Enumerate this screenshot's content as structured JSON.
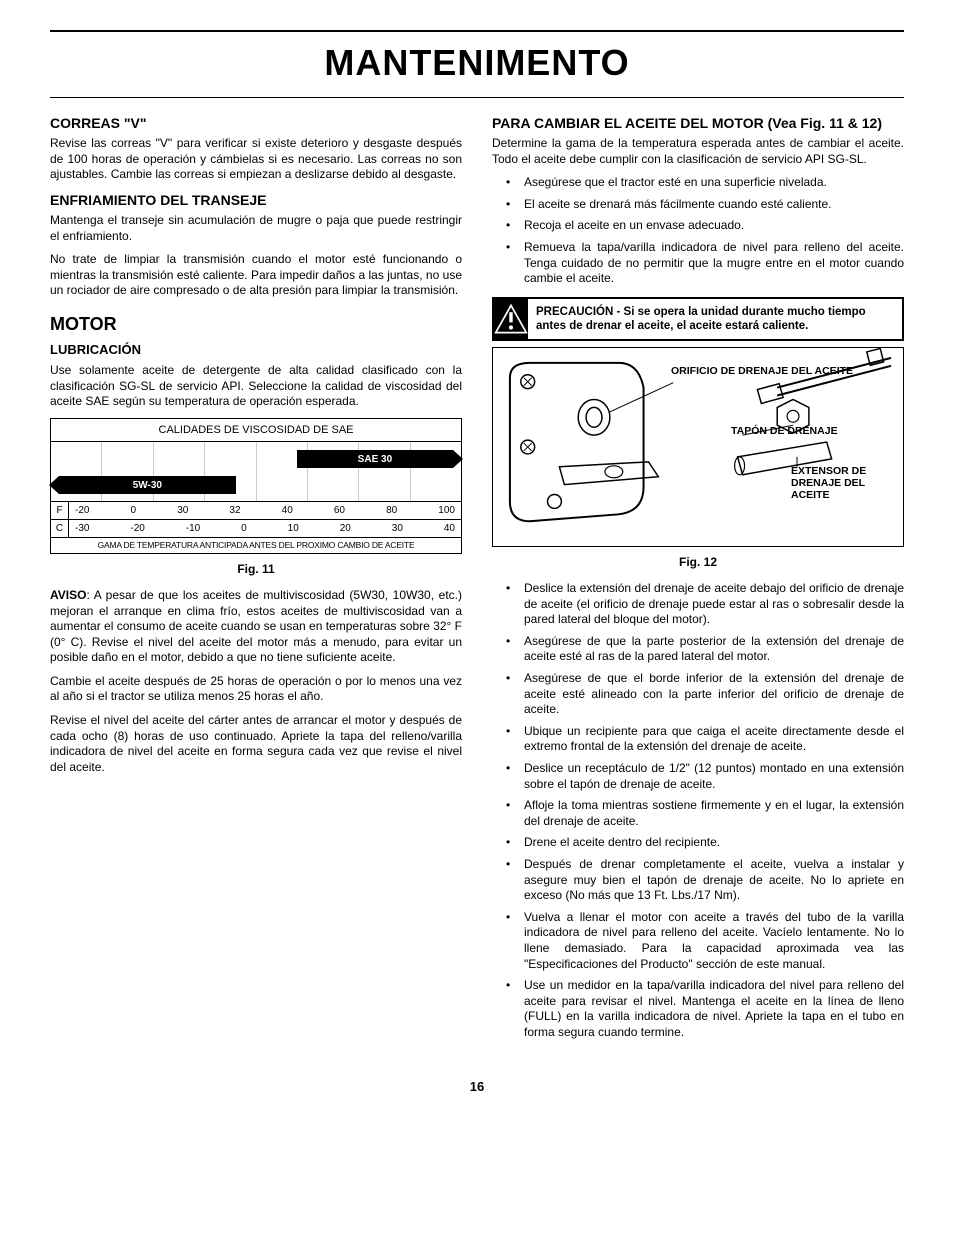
{
  "page_title": "MANTENIMENTO",
  "page_number": "16",
  "left": {
    "correas": {
      "heading": "CORREAS \"V\"",
      "p1": "Revise las correas \"V\" para verificar si existe deterioro y desgaste después de 100 horas de operación y cámbielas si es necesario. Las correas no son ajustables. Cambie las correas si empiezan a deslizarse debido al desgaste."
    },
    "enfriamiento": {
      "heading": "ENFRIAMIENTO DEL TRANSEJE",
      "p1": "Mantenga el transeje sin acumulación de mugre o paja que puede restringir el enfriamiento.",
      "p2": "No trate de limpiar la transmisión cuando el motor esté funcionando o mientras la transmisión esté caliente. Para impedir daños a las juntas, no use un rociador de aire compresado o de alta presión para limpiar la transmisión."
    },
    "motor_heading": "MOTOR",
    "lubricacion": {
      "heading": "LUBRICACIÓN",
      "p1": "Use solamente aceite de detergente de alta calidad clasificado con la clasificación SG-SL de servicio API. Seleccione la calidad de viscosidad del aceite SAE según su temperatura de operación esperada."
    },
    "sae_chart": {
      "title": "CALIDADES DE VISCOSIDAD DE SAE",
      "bar_sae30": "SAE 30",
      "bar_5w30": "5W-30",
      "f_label": "F",
      "c_label": "C",
      "f_ticks": [
        "-20",
        "0",
        "30",
        "32",
        "40",
        "60",
        "80",
        "100"
      ],
      "c_ticks": [
        "-30",
        "-20",
        "-10",
        "0",
        "10",
        "20",
        "30",
        "40"
      ],
      "footer": "GAMA DE TEMPERATURA ANTICIPADA ANTES DEL PROXIMO CAMBIO DE ACEITE"
    },
    "fig11_caption": "Fig. 11",
    "aviso_label": "AVISO",
    "aviso_text": ": A pesar de que los aceites de multiviscosidad (5W30, 10W30, etc.) mejoran el arranque en clima frío, estos aceites de multiviscosidad van a aumentar el consumo de aceite cuando se usan en temperaturas sobre 32° F (0° C). Revise el nivel del aceite del motor más a menudo, para evitar un posible daño en el motor, debido a que no tiene suficiente aceite.",
    "p_cambie": "Cambie el aceite después de 25 horas de operación o por lo menos una vez al año si el tractor se utiliza menos 25 horas el año.",
    "p_revise": "Revise el nivel del aceite del cárter antes de arrancar el motor y después de cada ocho (8) horas de uso continuado. Apriete la tapa del relleno/varilla indicadora de nivel del aceite en forma segura cada vez que revise el nivel del aceite."
  },
  "right": {
    "cambiar": {
      "heading": "PARA CAMBIAR EL ACEITE DEL MOTOR (Vea Fig. 11 & 12)",
      "p1": "Determine la gama de la temperatura esperada antes de cambiar el aceite. Todo el aceite debe cumplir con la clasificación de servicio API  SG-SL.",
      "bullets1": [
        "Asegúrese que el tractor esté en una superficie nivelada.",
        "El aceite se drenará más fácilmente cuando esté caliente.",
        "Recoja el aceite en un envase adecuado.",
        "Remueva la tapa/varilla indicadora de nivel para relleno del aceite. Tenga cuidado de no permitir que la mugre entre en el motor cuando cambie el aceite."
      ]
    },
    "caution_text": "PRECAUCIÓN - Si se opera la unidad durante mucho tiempo antes de drenar el aceite, el aceite estará caliente.",
    "fig12_labels": {
      "orificio": "ORIFICIO DE DRENAJE DEL ACEITE",
      "tapon": "TAPÓN DE DRENAJE",
      "extensor": "EXTENSOR DE DRENAJE DEL ACEITE"
    },
    "fig12_caption": "Fig. 12",
    "bullets2": [
      "Deslice la extensión del drenaje de aceite debajo del orificio de drenaje de aceite (el orificio de drenaje puede estar al ras o sobresalir desde la pared lateral del bloque del motor).",
      "Asegúrese de que la parte posterior de la extensión del drenaje de aceite esté al ras de la pared lateral del motor.",
      "Asegúrese de que el borde inferior de la extensión del drenaje de aceite esté alineado con la parte inferior del orificio de drenaje de aceite.",
      "Ubique un recipiente para que caiga el aceite directamente desde el extremo frontal de la extensión del drenaje de aceite.",
      "Deslice un receptáculo de 1/2\" (12 puntos) montado en una extensión sobre el tapón de drenaje de aceite.",
      "Afloje la toma mientras sostiene firmemente y en el lugar, la extensión del drenaje de aceite.",
      "Drene el aceite dentro del recipiente.",
      "Después de drenar completamente el aceite, vuelva a instalar y asegure muy bien el tapón de drenaje de aceite.  No lo apriete en exceso (No más que 13 Ft. Lbs./17 Nm).",
      "Vuelva a llenar el motor con aceite a través del tubo de la varilla indicadora de nivel para relleno del aceite. Vacíelo lentamente. No lo llene demasiado. Para la capacidad aproximada vea las \"Especificaciones del Producto\" sección de este manual.",
      "Use un medidor en la tapa/varilla indicadora del nivel para relleno del aceite para revisar el nivel. Mantenga el aceite en la línea de lleno (FULL) en la varilla indicadora de nivel. Apriete la tapa en el tubo en forma segura cuando termine."
    ]
  }
}
